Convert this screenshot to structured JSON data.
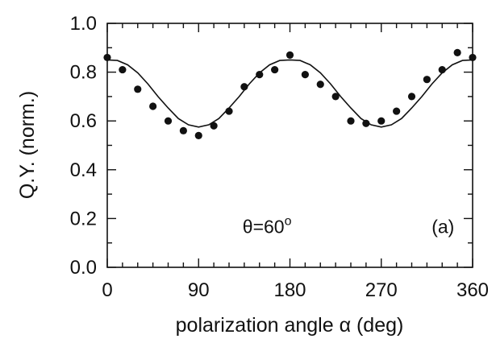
{
  "chart_data": {
    "type": "scatter",
    "xlabel": "polarization angle α (deg)",
    "ylabel": "Q.Y. (norm.)",
    "xlim": [
      0,
      360
    ],
    "ylim": [
      0.0,
      1.0
    ],
    "xticks": [
      0,
      90,
      180,
      270,
      360
    ],
    "xtick_labels": [
      "0",
      "90",
      "180",
      "270",
      "360"
    ],
    "yticks": [
      0.0,
      0.2,
      0.4,
      0.6,
      0.8,
      1.0
    ],
    "ytick_labels": [
      "0.0",
      "0.2",
      "0.4",
      "0.6",
      "0.8",
      "1.0"
    ],
    "grid": false,
    "annotations": [
      {
        "id": "theta",
        "text": "θ=60",
        "superscript": "o",
        "x": 185,
        "y": 0.2
      },
      {
        "id": "panel",
        "text": "(a)",
        "x": 342,
        "y": 0.2
      }
    ],
    "series": [
      {
        "kind": "points",
        "x": [
          0,
          15,
          30,
          45,
          60,
          75,
          90,
          105,
          120,
          135,
          150,
          165,
          180,
          195,
          210,
          225,
          240,
          255,
          270,
          285,
          300,
          315,
          330,
          345,
          360
        ],
        "y": [
          0.86,
          0.81,
          0.73,
          0.66,
          0.6,
          0.56,
          0.54,
          0.58,
          0.64,
          0.74,
          0.79,
          0.81,
          0.87,
          0.79,
          0.75,
          0.7,
          0.6,
          0.59,
          0.6,
          0.64,
          0.7,
          0.77,
          0.81,
          0.88,
          0.86
        ]
      },
      {
        "kind": "curve",
        "x": [
          0,
          10,
          20,
          30,
          40,
          50,
          60,
          70,
          80,
          90,
          100,
          110,
          120,
          130,
          140,
          150,
          160,
          170,
          180,
          190,
          200,
          210,
          220,
          230,
          240,
          250,
          260,
          270,
          280,
          290,
          300,
          310,
          320,
          330,
          340,
          350,
          360
        ],
        "y": [
          0.85,
          0.848,
          0.83,
          0.797,
          0.752,
          0.7,
          0.653,
          0.61,
          0.584,
          0.575,
          0.584,
          0.61,
          0.653,
          0.7,
          0.752,
          0.797,
          0.83,
          0.848,
          0.85,
          0.848,
          0.83,
          0.797,
          0.752,
          0.7,
          0.653,
          0.61,
          0.584,
          0.575,
          0.584,
          0.61,
          0.653,
          0.7,
          0.752,
          0.797,
          0.83,
          0.848,
          0.85
        ]
      }
    ]
  }
}
